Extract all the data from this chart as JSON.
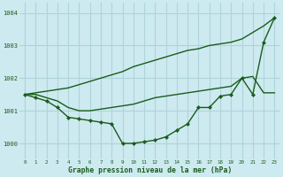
{
  "title": "Graphe pression niveau de la mer (hPa)",
  "background_color": "#cdeaf0",
  "grid_color": "#aed4da",
  "line_color": "#1a5c1a",
  "x_ticks": [
    0,
    1,
    2,
    3,
    4,
    5,
    6,
    7,
    8,
    9,
    10,
    11,
    12,
    13,
    14,
    15,
    16,
    17,
    18,
    19,
    20,
    21,
    22,
    23
  ],
  "ylim": [
    999.5,
    1004.3
  ],
  "yticks": [
    1000,
    1001,
    1002,
    1003,
    1004
  ],
  "series": [
    {
      "comment": "Upper straight diagonal line - no markers, goes from ~1001.5 to 1003.8",
      "x": [
        0,
        1,
        2,
        3,
        4,
        5,
        6,
        7,
        8,
        9,
        10,
        11,
        12,
        13,
        14,
        15,
        16,
        17,
        18,
        19,
        20,
        21,
        22,
        23
      ],
      "y": [
        1001.5,
        1001.55,
        1001.6,
        1001.65,
        1001.7,
        1001.8,
        1001.9,
        1002.0,
        1002.1,
        1002.2,
        1002.35,
        1002.45,
        1002.55,
        1002.65,
        1002.75,
        1002.85,
        1002.9,
        1003.0,
        1003.05,
        1003.1,
        1003.2,
        1003.4,
        1003.6,
        1003.85
      ],
      "marker": false
    },
    {
      "comment": "Middle curved line - no markers, relatively flat around 1001.5 then rises",
      "x": [
        0,
        1,
        2,
        3,
        4,
        5,
        6,
        7,
        8,
        9,
        10,
        11,
        12,
        13,
        14,
        15,
        16,
        17,
        18,
        19,
        20,
        21,
        22,
        23
      ],
      "y": [
        1001.5,
        1001.5,
        1001.4,
        1001.3,
        1001.1,
        1001.0,
        1001.0,
        1001.05,
        1001.1,
        1001.15,
        1001.2,
        1001.3,
        1001.4,
        1001.45,
        1001.5,
        1001.55,
        1001.6,
        1001.65,
        1001.7,
        1001.75,
        1002.0,
        1002.05,
        1001.55,
        1001.55
      ],
      "marker": false
    },
    {
      "comment": "Bottom line with diamond markers - dips to 1000.0",
      "x": [
        0,
        1,
        2,
        3,
        4,
        5,
        6,
        7,
        8,
        9,
        10,
        11,
        12,
        13,
        14,
        15,
        16,
        17,
        18,
        19,
        20,
        21,
        22,
        23
      ],
      "y": [
        1001.5,
        1001.4,
        1001.3,
        1001.1,
        1000.8,
        1000.75,
        1000.7,
        1000.65,
        1000.6,
        1000.0,
        1000.0,
        1000.05,
        1000.1,
        1000.2,
        1000.4,
        1000.6,
        1001.1,
        1001.1,
        1001.45,
        1001.5,
        1002.0,
        1001.5,
        1003.1,
        1003.85
      ],
      "marker": true
    }
  ]
}
